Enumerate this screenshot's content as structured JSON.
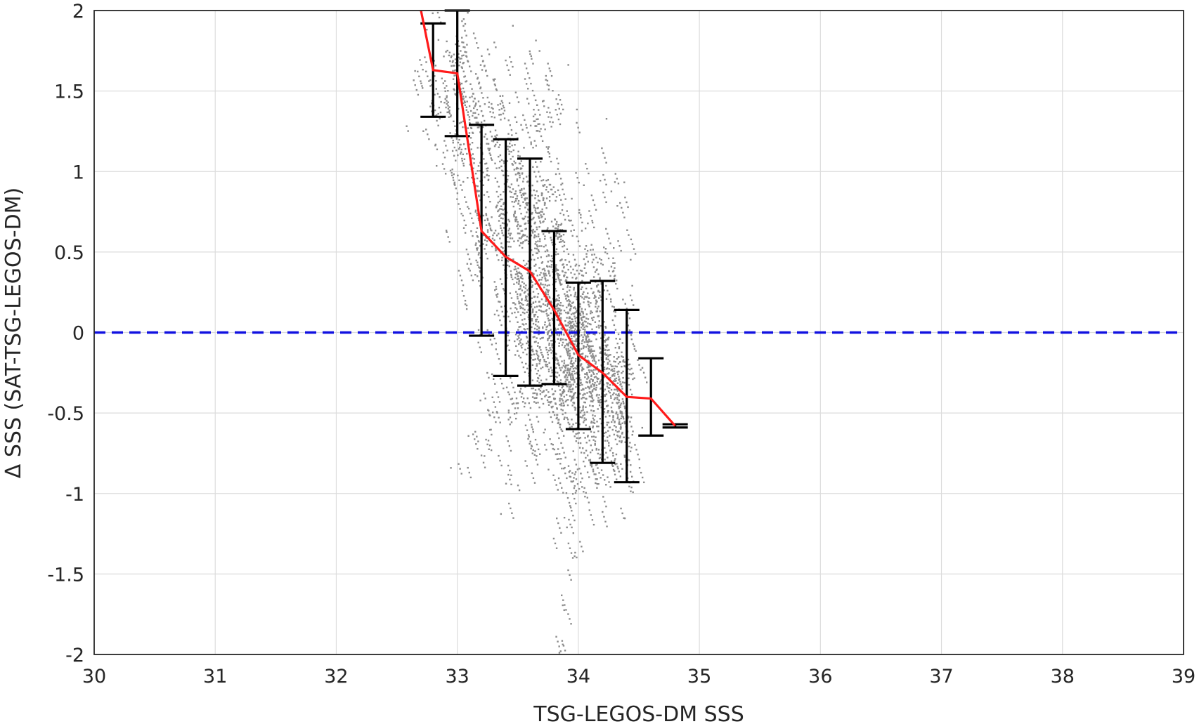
{
  "chart_data": {
    "type": "scatter",
    "xlabel": "TSG-LEGOS-DM SSS",
    "ylabel": "Δ SSS (SAT-TSG-LEGOS-DM)",
    "xlim": [
      30,
      39
    ],
    "ylim": [
      -2,
      2
    ],
    "x_ticks": [
      "30",
      "31",
      "32",
      "33",
      "34",
      "35",
      "36",
      "37",
      "38",
      "39"
    ],
    "y_ticks": [
      "2",
      "1.5",
      "1",
      "0.5",
      "0",
      "-0.5",
      "-1",
      "-1.5",
      "-2"
    ],
    "grid": true,
    "reference_line": {
      "y": 0,
      "style": "dashed",
      "color": "#1010e0"
    },
    "colors": {
      "scatter": "#8c8c8c",
      "mean_line": "#ff1a1a",
      "error_bars": "#000000"
    },
    "binned_mean": {
      "x": [
        32.7,
        32.8,
        33.0,
        33.2,
        33.4,
        33.6,
        33.8,
        34.0,
        34.2,
        34.4,
        34.6,
        34.8
      ],
      "y": [
        2.0,
        1.63,
        1.61,
        0.63,
        0.47,
        0.38,
        0.14,
        -0.14,
        -0.25,
        -0.4,
        -0.41,
        -0.58
      ]
    },
    "error_bars": [
      {
        "x": 32.8,
        "low": 1.34,
        "high": 1.92
      },
      {
        "x": 33.0,
        "low": 1.22,
        "high": 2.0
      },
      {
        "x": 33.2,
        "low": -0.02,
        "high": 1.29
      },
      {
        "x": 33.4,
        "low": -0.27,
        "high": 1.2
      },
      {
        "x": 33.6,
        "low": -0.33,
        "high": 1.08
      },
      {
        "x": 33.8,
        "low": -0.32,
        "high": 0.63
      },
      {
        "x": 34.0,
        "low": -0.6,
        "high": 0.31
      },
      {
        "x": 34.2,
        "low": -0.81,
        "high": 0.32
      },
      {
        "x": 34.4,
        "low": -0.93,
        "high": 0.14
      },
      {
        "x": 34.6,
        "low": -0.64,
        "high": -0.16
      },
      {
        "x": 34.8,
        "low": -0.59,
        "high": -0.57
      }
    ],
    "scatter_clusters": [
      {
        "x": 32.85,
        "y": 1.55,
        "sx": 0.12,
        "sy": 0.25,
        "n": 60
      },
      {
        "x": 33.05,
        "y": 1.35,
        "sx": 0.1,
        "sy": 0.35,
        "n": 70
      },
      {
        "x": 33.2,
        "y": 0.9,
        "sx": 0.1,
        "sy": 0.45,
        "n": 90
      },
      {
        "x": 33.4,
        "y": 0.6,
        "sx": 0.1,
        "sy": 0.45,
        "n": 130
      },
      {
        "x": 33.6,
        "y": 0.4,
        "sx": 0.1,
        "sy": 0.45,
        "n": 200
      },
      {
        "x": 33.8,
        "y": 0.15,
        "sx": 0.1,
        "sy": 0.42,
        "n": 260
      },
      {
        "x": 34.0,
        "y": -0.15,
        "sx": 0.1,
        "sy": 0.4,
        "n": 260
      },
      {
        "x": 34.2,
        "y": -0.25,
        "sx": 0.1,
        "sy": 0.38,
        "n": 180
      },
      {
        "x": 34.35,
        "y": -0.45,
        "sx": 0.08,
        "sy": 0.3,
        "n": 80
      },
      {
        "x": 33.3,
        "y": -0.6,
        "sx": 0.15,
        "sy": 0.2,
        "n": 40
      },
      {
        "x": 33.65,
        "y": 1.4,
        "sx": 0.15,
        "sy": 0.3,
        "n": 40
      },
      {
        "x": 34.2,
        "y": 0.7,
        "sx": 0.12,
        "sy": 0.35,
        "n": 30
      },
      {
        "x": 33.85,
        "y": -1.85,
        "sx": 0.03,
        "sy": 0.08,
        "n": 8
      },
      {
        "x": 33.9,
        "y": -1.2,
        "sx": 0.06,
        "sy": 0.15,
        "n": 14
      }
    ]
  }
}
